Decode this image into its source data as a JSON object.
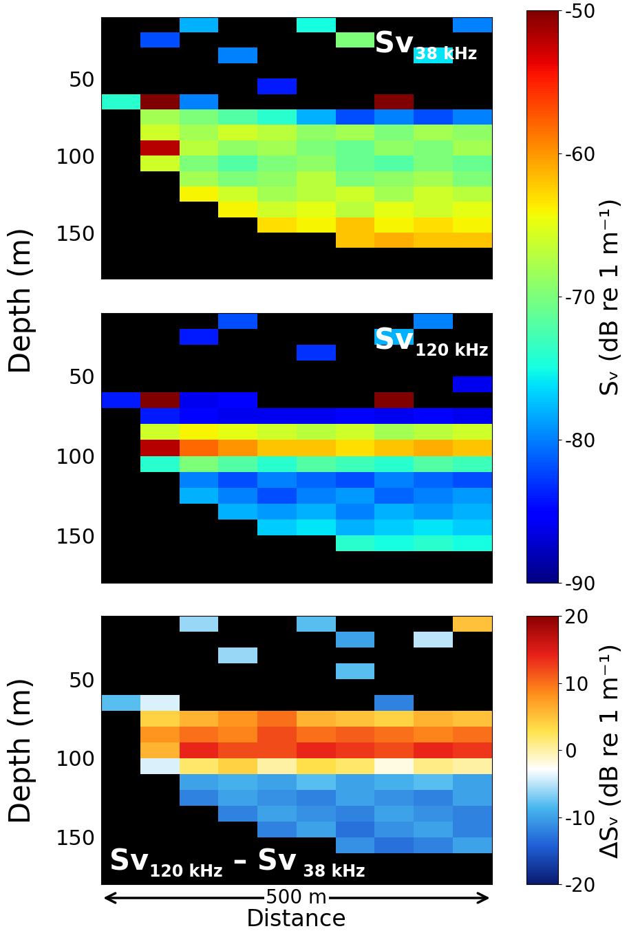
{
  "chart_data": {
    "type": "heatmap",
    "xlabel": "Distance",
    "scale_bar": {
      "length": 500,
      "label": "500 m"
    },
    "xlim": [
      0,
      500
    ],
    "tick_labels": "y",
    "distance_edges": [
      0,
      50,
      100,
      150,
      200,
      250,
      300,
      350,
      400,
      450,
      500
    ],
    "depth_edges": [
      10,
      20,
      30,
      40,
      50,
      60,
      70,
      80,
      90,
      100,
      110,
      120,
      130,
      140,
      150,
      160,
      170,
      180
    ],
    "groups": [
      {
        "ylabel": "Depth (m)",
        "colorbar": {
          "label": "Sᵥ (dB re 1 m⁻¹)",
          "range": [
            -90,
            -50
          ],
          "ticks": [
            -50,
            -60,
            -70,
            -80,
            -90
          ]
        },
        "panels": [
          {
            "label_parts": [
              "Sv",
              "38 kHz"
            ],
            "ylim": [
              180,
              10
            ],
            "yticks": [
              50,
              100,
              150
            ],
            "cells": [
              [
                null,
                null,
                -78,
                null,
                null,
                -75,
                null,
                null,
                null,
                -80
              ],
              [
                null,
                -82,
                null,
                null,
                null,
                null,
                -70,
                null,
                null,
                null
              ],
              [
                null,
                null,
                null,
                -80,
                null,
                null,
                null,
                null,
                -76,
                null
              ],
              [
                null,
                null,
                null,
                null,
                null,
                null,
                null,
                null,
                null,
                null
              ],
              [
                null,
                null,
                null,
                null,
                -84,
                null,
                null,
                null,
                null,
                null
              ],
              [
                -74,
                -50,
                -80,
                null,
                null,
                null,
                null,
                -50,
                null,
                null
              ],
              [
                null,
                -68,
                -70,
                -72,
                -74,
                -78,
                -82,
                -80,
                -82,
                -80
              ],
              [
                null,
                -66,
                -68,
                -66,
                -67,
                -69,
                -68,
                -70,
                -68,
                -69
              ],
              [
                null,
                -52,
                -67,
                -69,
                -68,
                -70,
                -71,
                -69,
                -70,
                -68
              ],
              [
                null,
                -66,
                -70,
                -72,
                -70,
                -69,
                -71,
                -72,
                -70,
                -71
              ],
              [
                null,
                null,
                -68,
                -70,
                -69,
                -67,
                -70,
                -69,
                -68,
                -70
              ],
              [
                null,
                null,
                -64,
                -66,
                -68,
                -67,
                -66,
                -68,
                -66,
                -67
              ],
              [
                null,
                null,
                null,
                -64,
                -66,
                -65,
                -67,
                -65,
                -66,
                -65
              ],
              [
                null,
                null,
                null,
                null,
                -63,
                -64,
                -62,
                -64,
                -63,
                -64
              ],
              [
                null,
                null,
                null,
                null,
                null,
                null,
                -62,
                -61,
                -62,
                -62
              ],
              [
                null,
                null,
                null,
                null,
                null,
                null,
                null,
                null,
                null,
                null
              ],
              [
                null,
                null,
                null,
                null,
                null,
                null,
                null,
                null,
                null,
                null
              ]
            ]
          },
          {
            "label_parts": [
              "Sv",
              "120 kHz"
            ],
            "ylim": [
              180,
              10
            ],
            "yticks": [
              50,
              100,
              150
            ],
            "cells": [
              [
                null,
                null,
                null,
                -82,
                null,
                null,
                null,
                null,
                -80,
                null
              ],
              [
                null,
                null,
                -84,
                null,
                null,
                null,
                null,
                -78,
                null,
                null
              ],
              [
                null,
                null,
                null,
                null,
                null,
                -83,
                null,
                null,
                null,
                null
              ],
              [
                null,
                null,
                null,
                null,
                null,
                null,
                null,
                null,
                null,
                null
              ],
              [
                null,
                null,
                null,
                null,
                null,
                null,
                null,
                null,
                null,
                -86
              ],
              [
                -84,
                -50,
                -86,
                -85,
                null,
                null,
                null,
                -50,
                null,
                null
              ],
              [
                null,
                -84,
                -85,
                -86,
                -86,
                -86,
                -85,
                -86,
                -85,
                -86
              ],
              [
                null,
                -66,
                -64,
                -65,
                -66,
                -67,
                -66,
                -68,
                -67,
                -66
              ],
              [
                null,
                -52,
                -58,
                -60,
                -62,
                -62,
                -63,
                -62,
                -61,
                -62
              ],
              [
                null,
                -74,
                -70,
                -72,
                -74,
                -72,
                -73,
                -74,
                -72,
                -73
              ],
              [
                null,
                null,
                -80,
                -82,
                -80,
                -81,
                -82,
                -80,
                -81,
                -82
              ],
              [
                null,
                null,
                -78,
                -80,
                -82,
                -80,
                -79,
                -81,
                -80,
                -79
              ],
              [
                null,
                null,
                null,
                -78,
                -79,
                -78,
                -80,
                -78,
                -79,
                -78
              ],
              [
                null,
                null,
                null,
                null,
                -77,
                -76,
                -78,
                -77,
                -76,
                -77
              ],
              [
                null,
                null,
                null,
                null,
                null,
                null,
                -74,
                -75,
                -74,
                -75
              ],
              [
                null,
                null,
                null,
                null,
                null,
                null,
                null,
                null,
                null,
                null
              ],
              [
                null,
                null,
                null,
                null,
                null,
                null,
                null,
                null,
                null,
                null
              ]
            ]
          }
        ]
      },
      {
        "ylabel": "Depth (m)",
        "colorbar": {
          "label": "ΔSᵥ (dB re 1 m⁻¹)",
          "range": [
            -20,
            20
          ],
          "ticks": [
            20,
            10,
            0,
            -10,
            -20
          ]
        },
        "panels": [
          {
            "label_parts": [
              "Sv",
              "120 kHz",
              " – Sv",
              " 38 kHz"
            ],
            "ylim": [
              180,
              10
            ],
            "yticks": [
              50,
              100,
              150
            ],
            "cells": [
              [
                null,
                null,
                -6,
                null,
                null,
                -8,
                null,
                null,
                null,
                5
              ],
              [
                null,
                null,
                null,
                null,
                null,
                null,
                -10,
                null,
                -5,
                null
              ],
              [
                null,
                null,
                null,
                -6,
                null,
                null,
                null,
                null,
                null,
                null
              ],
              [
                null,
                null,
                null,
                null,
                null,
                null,
                -8,
                null,
                null,
                null
              ],
              [
                null,
                null,
                null,
                null,
                null,
                null,
                null,
                null,
                null,
                null
              ],
              [
                -8,
                -4,
                null,
                null,
                null,
                null,
                null,
                -12,
                null,
                null
              ],
              [
                null,
                4,
                6,
                8,
                10,
                6,
                5,
                4,
                6,
                5
              ],
              [
                null,
                8,
                10,
                9,
                12,
                10,
                11,
                10,
                9,
                10
              ],
              [
                null,
                6,
                14,
                12,
                12,
                14,
                13,
                12,
                14,
                13
              ],
              [
                null,
                -4,
                2,
                4,
                0,
                3,
                2,
                -2,
                1,
                0
              ],
              [
                null,
                null,
                -10,
                -9,
                -10,
                -8,
                -10,
                -9,
                -8,
                -10
              ],
              [
                null,
                null,
                -12,
                -10,
                -11,
                -12,
                -10,
                -11,
                -12,
                -10
              ],
              [
                null,
                null,
                null,
                -12,
                -10,
                -11,
                -12,
                -10,
                -11,
                -12
              ],
              [
                null,
                null,
                null,
                null,
                -12,
                -10,
                -13,
                -11,
                -10,
                -12
              ],
              [
                null,
                null,
                null,
                null,
                null,
                null,
                -11,
                -13,
                -12,
                -10
              ],
              [
                null,
                null,
                null,
                null,
                null,
                null,
                null,
                null,
                null,
                null
              ],
              [
                null,
                null,
                null,
                null,
                null,
                null,
                null,
                null,
                null,
                null
              ]
            ]
          }
        ]
      }
    ]
  }
}
